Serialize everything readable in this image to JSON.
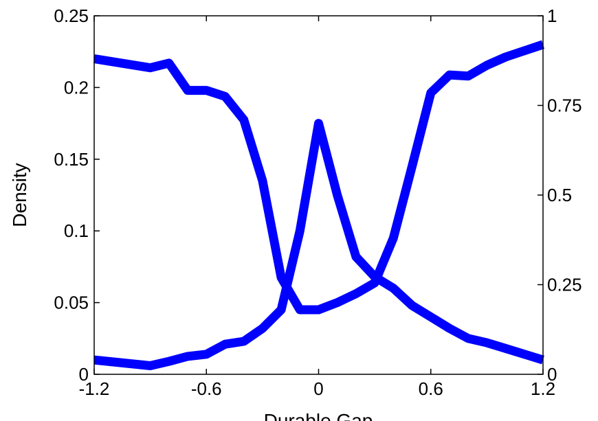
{
  "chart_data": {
    "type": "line",
    "title": "",
    "xlabel": "Durable Gap",
    "ylabel": "Density",
    "y2label": "",
    "xlim": [
      -1.2,
      1.2
    ],
    "ylim": [
      0,
      0.25
    ],
    "y2lim": [
      0,
      1
    ],
    "x_ticks": [
      -1.2,
      -0.6,
      0,
      0.6,
      1.2
    ],
    "x_tick_labels": [
      "-1.2",
      "-0.6",
      "0",
      "0.6",
      "1.2"
    ],
    "y_ticks": [
      0,
      0.05,
      0.1,
      0.15,
      0.2,
      0.25
    ],
    "y_tick_labels": [
      "0",
      "0.05",
      "0.1",
      "0.15",
      "0.2",
      "0.25"
    ],
    "y2_ticks": [
      0,
      0.25,
      0.5,
      0.75,
      1
    ],
    "y2_tick_labels": [
      "0",
      "0.25",
      "0.5",
      "0.75",
      "1"
    ],
    "grid": false,
    "legend": "none",
    "series_color": "#0000ff",
    "series": [
      {
        "axis": "left",
        "x": [
          -1.2,
          -0.9,
          -0.8,
          -0.7,
          -0.6,
          -0.5,
          -0.4,
          -0.3,
          -0.2,
          -0.1,
          0,
          0.1,
          0.2,
          0.3,
          0.4,
          0.5,
          0.6,
          0.7,
          0.8,
          0.9,
          1.0,
          1.2
        ],
        "values": [
          0.01,
          0.006,
          0.009,
          0.0125,
          0.014,
          0.021,
          0.023,
          0.032,
          0.045,
          0.1,
          0.175,
          0.125,
          0.082,
          0.068,
          0.06,
          0.048,
          0.04,
          0.032,
          0.025,
          0.022,
          0.018,
          0.01
        ]
      },
      {
        "axis": "right",
        "x": [
          -1.2,
          -0.9,
          -0.8,
          -0.7,
          -0.6,
          -0.5,
          -0.4,
          -0.3,
          -0.2,
          -0.1,
          0,
          0.1,
          0.2,
          0.3,
          0.4,
          0.5,
          0.6,
          0.7,
          0.8,
          0.9,
          1.0,
          1.2
        ],
        "values": [
          0.88,
          0.855,
          0.868,
          0.792,
          0.792,
          0.775,
          0.71,
          0.54,
          0.27,
          0.18,
          0.18,
          0.2,
          0.225,
          0.255,
          0.38,
          0.58,
          0.785,
          0.835,
          0.832,
          0.862,
          0.885,
          0.92
        ]
      }
    ]
  }
}
